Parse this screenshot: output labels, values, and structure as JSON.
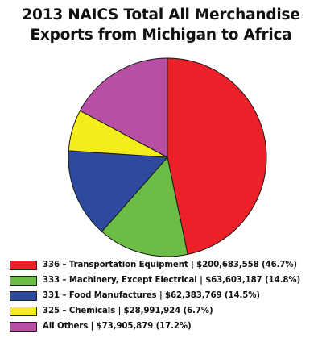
{
  "chart_data": {
    "type": "pie",
    "title": "2013 NAICS Total All Merchandise Exports from Michigan to Africa",
    "title_lines": [
      "2013 NAICS Total All Merchandise",
      "Exports from Michigan to Africa"
    ],
    "start_angle_deg": 90,
    "direction": "clockwise",
    "legend_position": "bottom",
    "slices": [
      {
        "label": "336 – Transportation Equipment | $200,683,558 (46.7%)",
        "value": 200683558,
        "percent": 46.7,
        "color": "#ec2029"
      },
      {
        "label": "333 – Machinery, Except Electrical | $63,603,187 (14.8%)",
        "value": 63603187,
        "percent": 14.8,
        "color": "#6cbd45"
      },
      {
        "label": "331 – Food Manufactures | $62,383,769 (14.5%)",
        "value": 62383769,
        "percent": 14.5,
        "color": "#2e4a9e"
      },
      {
        "label": "325 – Chemicals | $28,991,924 (6.7%)",
        "value": 28991924,
        "percent": 6.7,
        "color": "#f5ec1c"
      },
      {
        "label": "All Others | $73,905,879 (17.2%)",
        "value": 73905879,
        "percent": 17.2,
        "color": "#b84fa5"
      }
    ]
  }
}
